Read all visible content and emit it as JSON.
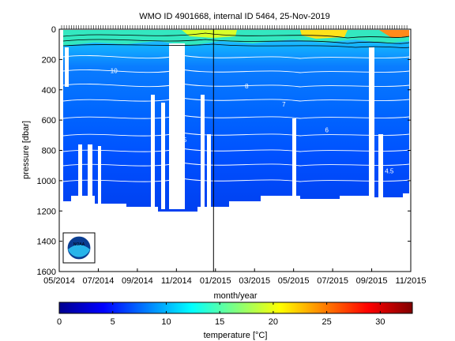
{
  "chart_data": {
    "type": "heatmap",
    "title": "WMO ID 4901668, internal ID 5464, 25-Nov-2019",
    "xlabel": "month/year",
    "ylabel": "pressure [dbar]",
    "x_tick_labels": [
      "05/2014",
      "07/2014",
      "09/2014",
      "11/2014",
      "01/2015",
      "03/2015",
      "05/2015",
      "07/2015",
      "09/2015",
      "11/2015"
    ],
    "x_range_months": [
      0,
      18
    ],
    "y_ticks": [
      0,
      200,
      400,
      600,
      800,
      1000,
      1200,
      1400,
      1600
    ],
    "ylim": [
      1600,
      0
    ],
    "y_reversed": true,
    "colorbar": {
      "label": "temperature [°C]",
      "ticks": [
        0,
        5,
        10,
        15,
        20,
        25,
        30
      ],
      "range": [
        0,
        33
      ],
      "colormap": "jet"
    },
    "temperature_profile": [
      {
        "pressure": 0,
        "temperature": 22
      },
      {
        "pressure": 30,
        "temperature": 20
      },
      {
        "pressure": 60,
        "temperature": 17
      },
      {
        "pressure": 100,
        "temperature": 13
      },
      {
        "pressure": 150,
        "temperature": 11
      },
      {
        "pressure": 200,
        "temperature": 10
      },
      {
        "pressure": 300,
        "temperature": 9
      },
      {
        "pressure": 400,
        "temperature": 8
      },
      {
        "pressure": 500,
        "temperature": 7
      },
      {
        "pressure": 600,
        "temperature": 6.5
      },
      {
        "pressure": 700,
        "temperature": 6
      },
      {
        "pressure": 800,
        "temperature": 5.5
      },
      {
        "pressure": 900,
        "temperature": 5
      },
      {
        "pressure": 1000,
        "temperature": 4.5
      },
      {
        "pressure": 1100,
        "temperature": 4
      },
      {
        "pressure": 1200,
        "temperature": 4
      }
    ],
    "contour_labels": [
      {
        "text": "10",
        "month": 2.8,
        "pressure": 290
      },
      {
        "text": "8",
        "month": 9.6,
        "pressure": 390
      },
      {
        "text": "7",
        "month": 11.5,
        "pressure": 510
      },
      {
        "text": "6",
        "month": 13.7,
        "pressure": 680
      },
      {
        "text": "5.5",
        "month": 6.3,
        "pressure": 745
      },
      {
        "text": "4.5",
        "month": 16.9,
        "pressure": 950
      }
    ],
    "vertical_line_month": 7.9
  },
  "logo": {
    "text": "NOAA"
  },
  "colors": {
    "frame": "#000000",
    "gap": "#ffffff",
    "contour": "#ffffff"
  }
}
